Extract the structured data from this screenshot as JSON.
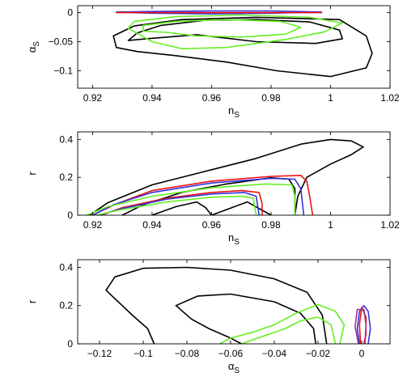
{
  "colors": {
    "black": "#000000",
    "green": "#66ee22",
    "blue": "#3333dd",
    "red": "#ee1111",
    "purple": "#993399"
  },
  "chart_data": [
    {
      "type": "contour",
      "title": "",
      "xlabel": "n",
      "xlabel_sub": "S",
      "ylabel": "α",
      "ylabel_sub": "S",
      "xlim": [
        0.915,
        1.02
      ],
      "ylim": [
        -0.13,
        0.012
      ],
      "xticks": [
        0.92,
        0.94,
        0.96,
        0.98,
        1,
        1.02
      ],
      "xtick_labels": [
        "0.92",
        "0.94",
        "0.96",
        "0.98",
        "1",
        "1.02"
      ],
      "yticks": [
        0,
        -0.05,
        -0.1
      ],
      "ytick_labels": [
        "0",
        "−0.05",
        "−0.1"
      ],
      "series": [
        {
          "color": "black",
          "points": [
            [
              0.932,
              -0.048
            ],
            [
              0.935,
              -0.035
            ],
            [
              0.943,
              -0.022
            ],
            [
              0.958,
              -0.013
            ],
            [
              0.975,
              -0.012
            ],
            [
              0.993,
              -0.016
            ],
            [
              1.003,
              -0.03
            ],
            [
              1.004,
              -0.045
            ],
            [
              0.995,
              -0.053
            ],
            [
              0.975,
              -0.05
            ],
            [
              0.955,
              -0.038
            ],
            [
              0.938,
              -0.045
            ],
            [
              0.932,
              -0.048
            ]
          ]
        },
        {
          "color": "black",
          "points": [
            [
              0.928,
              -0.06
            ],
            [
              0.927,
              -0.04
            ],
            [
              0.934,
              -0.023
            ],
            [
              0.95,
              -0.012
            ],
            [
              0.975,
              -0.008
            ],
            [
              1.003,
              -0.012
            ],
            [
              1.012,
              -0.04
            ],
            [
              1.014,
              -0.07
            ],
            [
              1.012,
              -0.095
            ],
            [
              1.0,
              -0.11
            ],
            [
              0.982,
              -0.1
            ],
            [
              0.965,
              -0.085
            ],
            [
              0.948,
              -0.074
            ],
            [
              0.935,
              -0.067
            ],
            [
              0.928,
              -0.06
            ]
          ]
        },
        {
          "color": "green",
          "points": [
            [
              0.937,
              -0.032
            ],
            [
              0.937,
              -0.022
            ],
            [
              0.948,
              -0.015
            ],
            [
              0.965,
              -0.012
            ],
            [
              0.983,
              -0.015
            ],
            [
              0.99,
              -0.025
            ],
            [
              0.985,
              -0.037
            ],
            [
              0.97,
              -0.042
            ],
            [
              0.955,
              -0.04
            ],
            [
              0.945,
              -0.034
            ],
            [
              0.937,
              -0.032
            ]
          ]
        },
        {
          "color": "green",
          "points": [
            [
              0.932,
              -0.027
            ],
            [
              0.934,
              -0.015
            ],
            [
              0.948,
              -0.007
            ],
            [
              0.97,
              -0.004
            ],
            [
              0.993,
              -0.008
            ],
            [
              1.004,
              -0.018
            ],
            [
              0.998,
              -0.033
            ],
            [
              0.985,
              -0.046
            ],
            [
              0.965,
              -0.06
            ],
            [
              0.95,
              -0.062
            ],
            [
              0.94,
              -0.05
            ],
            [
              0.932,
              -0.027
            ]
          ]
        },
        {
          "color": "blue",
          "points": [
            [
              0.928,
              0.001
            ],
            [
              0.94,
              0.002
            ],
            [
              0.96,
              0.003
            ],
            [
              0.98,
              0.003
            ],
            [
              0.997,
              0.001
            ],
            [
              0.98,
              -0.001
            ],
            [
              0.96,
              -0.002
            ],
            [
              0.94,
              -0.001
            ],
            [
              0.928,
              0.001
            ]
          ]
        },
        {
          "color": "red",
          "points": [
            [
              0.928,
              0.0
            ],
            [
              0.945,
              0.0
            ],
            [
              0.965,
              0.0
            ],
            [
              0.985,
              0.0
            ],
            [
              0.997,
              0.0
            ]
          ]
        }
      ]
    },
    {
      "type": "contour",
      "title": "",
      "xlabel": "n",
      "xlabel_sub": "S",
      "ylabel": "r",
      "ylabel_sub": "",
      "xlim": [
        0.915,
        1.02
      ],
      "ylim": [
        0,
        0.44
      ],
      "xticks": [
        0.92,
        0.94,
        0.96,
        0.98,
        1,
        1.02
      ],
      "xtick_labels": [
        "0.92",
        "0.94",
        "0.96",
        "0.98",
        "1",
        "1.02"
      ],
      "yticks": [
        0,
        0.2,
        0.4
      ],
      "ytick_labels": [
        "0",
        "0.2",
        "0.4"
      ],
      "series": [
        {
          "color": "black",
          "points": [
            [
              0.919,
              0.0
            ],
            [
              0.925,
              0.065
            ],
            [
              0.94,
              0.16
            ],
            [
              0.96,
              0.24
            ],
            [
              0.975,
              0.3
            ],
            [
              0.99,
              0.375
            ],
            [
              1.0,
              0.4
            ],
            [
              1.007,
              0.392
            ],
            [
              1.011,
              0.36
            ],
            [
              1.007,
              0.32
            ],
            [
              1.0,
              0.27
            ],
            [
              0.992,
              0.2
            ],
            [
              0.989,
              0.1
            ],
            [
              0.988,
              0.0
            ]
          ]
        },
        {
          "color": "black",
          "points": [
            [
              0.93,
              0.0
            ],
            [
              0.937,
              0.055
            ],
            [
              0.95,
              0.12
            ],
            [
              0.965,
              0.165
            ],
            [
              0.98,
              0.198
            ],
            [
              0.986,
              0.19
            ],
            [
              0.988,
              0.14
            ],
            [
              0.988,
              0.0
            ]
          ]
        },
        {
          "color": "black",
          "points": [
            [
              0.94,
              0.0
            ],
            [
              0.948,
              0.045
            ],
            [
              0.955,
              0.07
            ],
            [
              0.958,
              0.04
            ],
            [
              0.96,
              0.0
            ]
          ]
        },
        {
          "color": "black",
          "points": [
            [
              0.96,
              0.0
            ],
            [
              0.972,
              0.07
            ],
            [
              0.98,
              0.0
            ]
          ]
        },
        {
          "color": "red",
          "points": [
            [
              0.92,
              0.0
            ],
            [
              0.928,
              0.06
            ],
            [
              0.94,
              0.13
            ],
            [
              0.96,
              0.18
            ],
            [
              0.98,
              0.205
            ],
            [
              0.99,
              0.21
            ],
            [
              0.992,
              0.18
            ],
            [
              0.993,
              0.1
            ],
            [
              0.994,
              0.0
            ]
          ]
        },
        {
          "color": "red",
          "points": [
            [
              0.923,
              0.0
            ],
            [
              0.93,
              0.04
            ],
            [
              0.945,
              0.09
            ],
            [
              0.96,
              0.12
            ],
            [
              0.97,
              0.13
            ],
            [
              0.976,
              0.12
            ],
            [
              0.977,
              0.06
            ],
            [
              0.977,
              0.0
            ]
          ]
        },
        {
          "color": "blue",
          "points": [
            [
              0.92,
              0.0
            ],
            [
              0.927,
              0.055
            ],
            [
              0.94,
              0.12
            ],
            [
              0.96,
              0.17
            ],
            [
              0.98,
              0.195
            ],
            [
              0.988,
              0.19
            ],
            [
              0.99,
              0.14
            ],
            [
              0.991,
              0.0
            ]
          ]
        },
        {
          "color": "blue",
          "points": [
            [
              0.922,
              0.0
            ],
            [
              0.93,
              0.035
            ],
            [
              0.945,
              0.085
            ],
            [
              0.96,
              0.112
            ],
            [
              0.971,
              0.12
            ],
            [
              0.975,
              0.1
            ],
            [
              0.976,
              0.0
            ]
          ]
        },
        {
          "color": "green",
          "points": [
            [
              0.918,
              0.0
            ],
            [
              0.925,
              0.045
            ],
            [
              0.94,
              0.1
            ],
            [
              0.96,
              0.145
            ],
            [
              0.978,
              0.165
            ],
            [
              0.987,
              0.16
            ],
            [
              0.988,
              0.1
            ],
            [
              0.988,
              0.0
            ]
          ]
        },
        {
          "color": "green",
          "points": [
            [
              0.921,
              0.0
            ],
            [
              0.93,
              0.03
            ],
            [
              0.945,
              0.07
            ],
            [
              0.96,
              0.095
            ],
            [
              0.97,
              0.1
            ],
            [
              0.974,
              0.09
            ],
            [
              0.975,
              0.0
            ]
          ]
        }
      ]
    },
    {
      "type": "contour",
      "title": "",
      "xlabel": "α",
      "xlabel_sub": "S",
      "ylabel": "r",
      "ylabel_sub": "",
      "xlim": [
        -0.13,
        0.013
      ],
      "ylim": [
        0,
        0.44
      ],
      "xticks": [
        -0.12,
        -0.1,
        -0.08,
        -0.06,
        -0.04,
        -0.02,
        0
      ],
      "xtick_labels": [
        "−0.12",
        "−0.1",
        "−0.08",
        "−0.06",
        "−0.04",
        "−0.02",
        "0"
      ],
      "yticks": [
        0,
        0.2,
        0.4
      ],
      "ytick_labels": [
        "0",
        "0.2",
        "0.4"
      ],
      "series": [
        {
          "color": "black",
          "points": [
            [
              -0.117,
              0.28
            ],
            [
              -0.113,
              0.35
            ],
            [
              -0.1,
              0.395
            ],
            [
              -0.08,
              0.4
            ],
            [
              -0.06,
              0.385
            ],
            [
              -0.04,
              0.34
            ],
            [
              -0.025,
              0.27
            ],
            [
              -0.018,
              0.15
            ],
            [
              -0.016,
              0.0
            ]
          ]
        },
        {
          "color": "black",
          "points": [
            [
              -0.117,
              0.28
            ],
            [
              -0.105,
              0.15
            ],
            [
              -0.098,
              0.08
            ],
            [
              -0.095,
              0.0
            ]
          ]
        },
        {
          "color": "black",
          "points": [
            [
              -0.085,
              0.2
            ],
            [
              -0.075,
              0.25
            ],
            [
              -0.06,
              0.26
            ],
            [
              -0.04,
              0.22
            ],
            [
              -0.028,
              0.16
            ],
            [
              -0.022,
              0.08
            ],
            [
              -0.021,
              0.0
            ]
          ]
        },
        {
          "color": "black",
          "points": [
            [
              -0.085,
              0.2
            ],
            [
              -0.078,
              0.13
            ],
            [
              -0.07,
              0.08
            ],
            [
              -0.06,
              0.03
            ],
            [
              -0.055,
              0.0
            ]
          ]
        },
        {
          "color": "green",
          "points": [
            [
              -0.065,
              0.0
            ],
            [
              -0.06,
              0.03
            ],
            [
              -0.05,
              0.06
            ],
            [
              -0.04,
              0.1
            ],
            [
              -0.03,
              0.16
            ],
            [
              -0.02,
              0.205
            ],
            [
              -0.012,
              0.17
            ],
            [
              -0.008,
              0.1
            ],
            [
              -0.01,
              0.0
            ]
          ]
        },
        {
          "color": "green",
          "points": [
            [
              -0.055,
              0.0
            ],
            [
              -0.045,
              0.04
            ],
            [
              -0.035,
              0.08
            ],
            [
              -0.028,
              0.12
            ],
            [
              -0.02,
              0.14
            ],
            [
              -0.014,
              0.1
            ],
            [
              -0.012,
              0.0
            ]
          ]
        },
        {
          "color": "blue",
          "points": [
            [
              -0.001,
              0.0
            ],
            [
              -0.002,
              0.08
            ],
            [
              -0.001,
              0.17
            ],
            [
              0.001,
              0.2
            ],
            [
              0.003,
              0.17
            ],
            [
              0.004,
              0.08
            ],
            [
              0.003,
              0.0
            ]
          ]
        },
        {
          "color": "red",
          "points": [
            [
              -0.0005,
              0.0
            ],
            [
              -0.001,
              0.1
            ],
            [
              0.0,
              0.19
            ],
            [
              0.002,
              0.14
            ],
            [
              0.002,
              0.05
            ],
            [
              0.001,
              0.0
            ]
          ]
        },
        {
          "color": "purple",
          "points": [
            [
              -0.0015,
              0.0
            ],
            [
              -0.003,
              0.09
            ],
            [
              -0.002,
              0.18
            ],
            [
              0.001,
              0.18
            ],
            [
              0.002,
              0.1
            ],
            [
              0.0015,
              0.0
            ]
          ]
        }
      ]
    }
  ]
}
